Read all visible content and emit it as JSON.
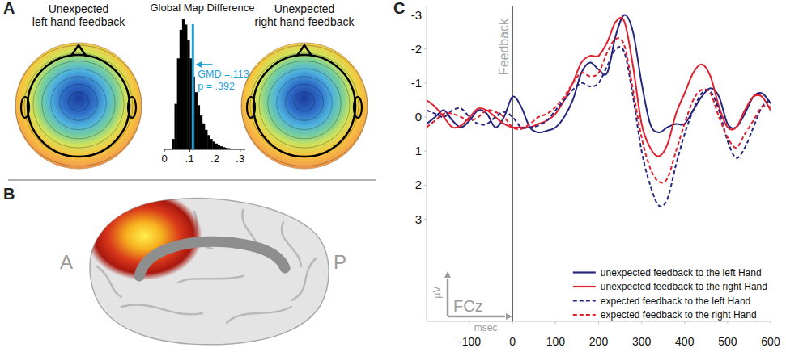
{
  "panels": {
    "letters": [
      "A",
      "B",
      "C"
    ]
  },
  "topomaps": [
    {
      "label": "Unexpected left hand feedback"
    },
    {
      "label": "Unexpected right hand feedback"
    }
  ],
  "brain": {
    "orientation_labels": [
      "A",
      "P"
    ]
  },
  "chart_data": [
    {
      "type": "histogram",
      "title": "Global Map Difference",
      "bins": [
        0.03,
        0.04,
        0.05,
        0.06,
        0.07,
        0.08,
        0.09,
        0.1,
        0.11,
        0.12,
        0.13,
        0.14,
        0.15,
        0.16,
        0.17,
        0.18,
        0.19,
        0.2,
        0.21,
        0.22,
        0.23,
        0.24,
        0.25,
        0.26,
        0.27,
        0.28,
        0.29,
        0.3,
        0.31
      ],
      "counts": [
        8,
        35,
        70,
        92,
        100,
        96,
        84,
        70,
        56,
        44,
        34,
        26,
        20,
        15,
        11,
        8,
        6,
        4.5,
        3.3,
        2.4,
        1.7,
        1.2,
        0.9,
        0.6,
        0.4,
        0.3,
        0.2,
        0.1
      ],
      "color": "#000000",
      "xlim": [
        0,
        0.32
      ],
      "xticks": [
        0,
        {
          "value": 0.1,
          "label": ".1"
        },
        {
          "value": 0.2,
          "label": ".2"
        },
        {
          "value": 0.3,
          "label": ".3"
        }
      ],
      "ylim": [
        0,
        100
      ],
      "tick_labels": "x",
      "annotations": [
        {
          "x": 0.113,
          "text": "GMD =.113"
        },
        {
          "text": "p = .392"
        }
      ]
    },
    {
      "type": "line",
      "x": [
        -200,
        -180,
        -160,
        -140,
        -120,
        -100,
        -80,
        -60,
        -40,
        -20,
        0,
        20,
        40,
        60,
        80,
        100,
        120,
        140,
        160,
        180,
        200,
        220,
        240,
        260,
        280,
        300,
        320,
        340,
        360,
        380,
        400,
        420,
        440,
        460,
        480,
        500,
        520,
        540,
        560,
        580,
        600
      ],
      "xlim": [
        -200,
        600
      ],
      "xticks": [
        -100,
        0,
        100,
        200,
        300,
        400,
        500,
        600
      ],
      "ylim": [
        6,
        -3.25
      ],
      "yticks": [
        -3,
        -2,
        -1,
        0,
        1,
        2,
        3
      ],
      "x_label": "msec",
      "y_label": "µV",
      "legend": "lower right",
      "annotations": [
        {
          "x": 0,
          "text": "Feedback"
        },
        {
          "text": "FCz"
        }
      ],
      "series": [
        {
          "name": "unexpected feedback to the left Hand",
          "color": "#26267f",
          "line_style": "solid",
          "values": [
            0.2,
            0.0,
            -0.2,
            0.1,
            0.3,
            0.1,
            -0.2,
            -0.1,
            0.3,
            0.0,
            -0.6,
            -0.3,
            0.3,
            0.45,
            0.4,
            0.3,
            0.0,
            -0.5,
            -1.3,
            -1.6,
            -1.4,
            -1.3,
            -2.4,
            -3.0,
            -2.5,
            -1.0,
            0.2,
            0.45,
            0.3,
            0.2,
            0.2,
            -0.2,
            -0.6,
            -0.85,
            -0.6,
            0.2,
            0.3,
            -0.1,
            -0.6,
            -0.7,
            -0.4
          ]
        },
        {
          "name": "unexpected feedback to the right Hand",
          "color": "#e0202e",
          "line_style": "solid",
          "values": [
            -0.5,
            -0.3,
            0.0,
            0.3,
            0.25,
            0.0,
            -0.25,
            -0.2,
            0.0,
            0.2,
            0.3,
            0.3,
            0.3,
            0.2,
            0.1,
            -0.1,
            -0.5,
            -1.0,
            -1.6,
            -1.8,
            -1.8,
            -2.2,
            -2.8,
            -2.8,
            -1.5,
            0.2,
            0.9,
            1.15,
            0.8,
            -0.1,
            -0.7,
            -1.3,
            -1.55,
            -1.2,
            -0.3,
            0.3,
            0.3,
            -0.2,
            -0.6,
            -0.6,
            -0.2
          ]
        },
        {
          "name": "expected feedback to the left Hand",
          "color": "#26267f",
          "line_style": "dashed",
          "values": [
            -0.2,
            -0.1,
            0.0,
            -0.2,
            -0.25,
            0.0,
            0.2,
            0.2,
            0.0,
            -0.15,
            0.0,
            0.3,
            0.3,
            0.25,
            0.1,
            -0.2,
            -0.5,
            -0.8,
            -1.0,
            -0.9,
            -1.0,
            -1.5,
            -2.0,
            -1.9,
            -0.6,
            1.0,
            2.0,
            2.6,
            2.4,
            1.4,
            0.5,
            -0.2,
            -0.7,
            -0.75,
            -0.2,
            0.7,
            1.2,
            0.9,
            0.3,
            -0.3,
            -0.5
          ]
        },
        {
          "name": "expected feedback to the right Hand",
          "color": "#e0202e",
          "line_style": "dashed",
          "values": [
            0.3,
            0.1,
            -0.1,
            -0.1,
            0.0,
            0.1,
            0.0,
            -0.2,
            -0.15,
            0.0,
            0.3,
            0.35,
            0.2,
            0.0,
            -0.1,
            -0.3,
            -0.6,
            -1.0,
            -1.3,
            -1.2,
            -1.3,
            -1.9,
            -2.3,
            -2.1,
            -0.8,
            0.6,
            1.5,
            1.9,
            1.8,
            1.0,
            0.2,
            -0.5,
            -0.8,
            -0.7,
            0.0,
            0.6,
            0.9,
            0.5,
            0.1,
            -0.3,
            -0.3
          ]
        }
      ]
    }
  ]
}
